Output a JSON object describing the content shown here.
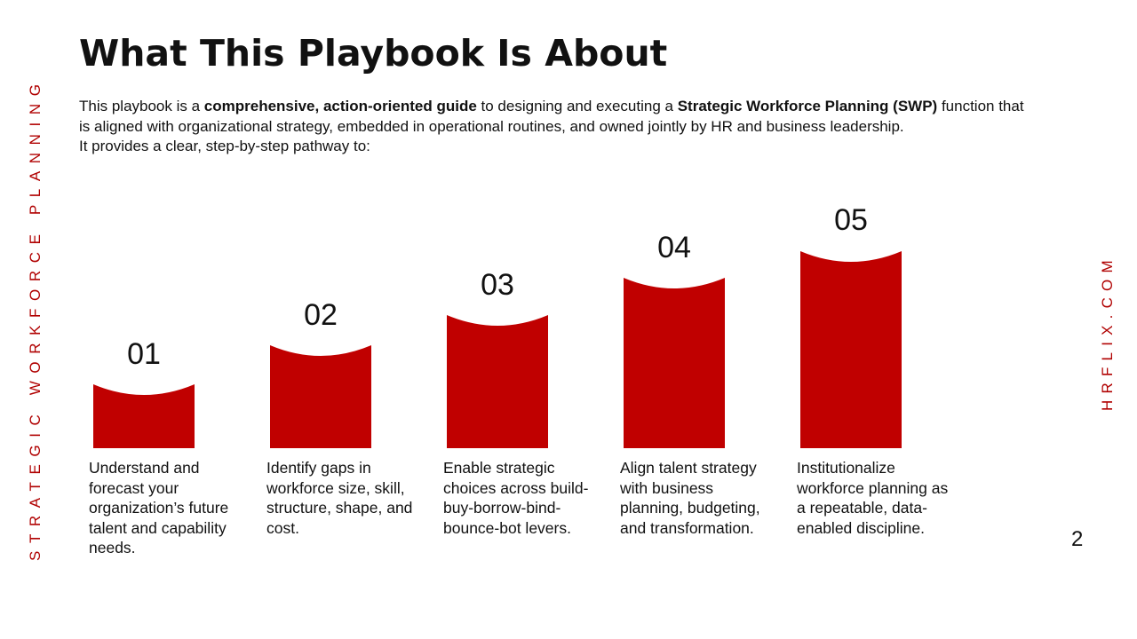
{
  "title": "What This Playbook Is About",
  "intro": {
    "line1_part1": "This playbook is a ",
    "line1_bold1": "comprehensive, action-oriented guide",
    "line1_part2": " to designing and executing a ",
    "line1_bold2": "Strategic Workforce Planning (SWP)",
    "line1_part3": " function that is aligned with organizational strategy, embedded in operational routines, and owned jointly by HR and business leadership.",
    "line2": "It provides a clear, step-by-step pathway to:"
  },
  "side_left": "STRATEGIC WORKFORCE PLANNING",
  "side_right": "HRFLIX.COM",
  "page_number": "2",
  "accent_color": "#c00000",
  "steps": [
    {
      "number": "01",
      "text": "Understand and forecast your organization’s future talent and capability needs."
    },
    {
      "number": "02",
      "text": "Identify gaps in workforce size, skill, structure, shape, and cost."
    },
    {
      "number": "03",
      "text": "Enable strategic choices across build-buy-borrow-bind-bounce-bot levers."
    },
    {
      "number": "04",
      "text": "Align talent strategy with business planning, budgeting, and transformation."
    },
    {
      "number": "05",
      "text": "Institutionalize workforce planning as a repeatable, data-enabled discipline."
    }
  ]
}
